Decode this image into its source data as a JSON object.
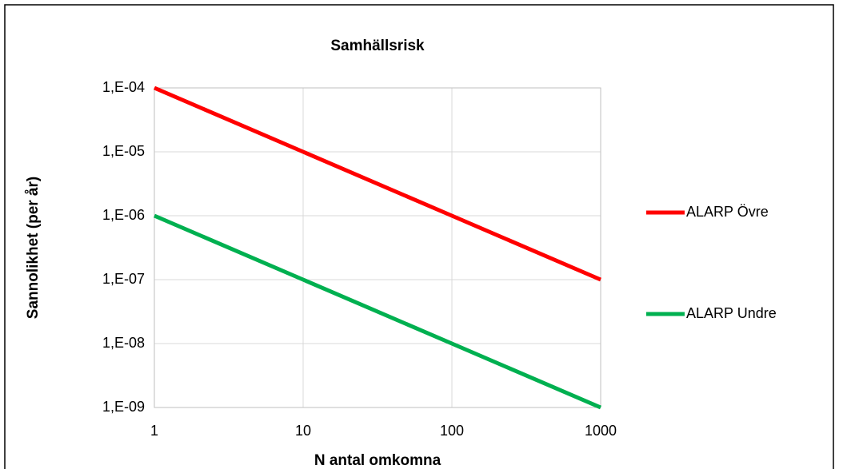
{
  "chart_data": {
    "type": "line",
    "title": "Samhällsrisk",
    "xlabel": "N antal omkomna",
    "ylabel": "Sannolikhet (per år)",
    "x": [
      1,
      10,
      100,
      1000
    ],
    "series": [
      {
        "name": "ALARP Övre",
        "color": "#ff0000",
        "values": [
          0.0001,
          1e-05,
          1e-06,
          1e-07
        ]
      },
      {
        "name": "ALARP Undre",
        "color": "#00b050",
        "values": [
          1e-06,
          1e-07,
          1e-08,
          1e-09
        ]
      }
    ],
    "xlim": [
      1,
      1000
    ],
    "xticks": [
      1,
      10,
      100,
      1000
    ],
    "ylim": [
      1e-09,
      0.0001
    ],
    "yticks": [
      {
        "value": 1e-09,
        "label": "1,E-09"
      },
      {
        "value": 1e-08,
        "label": "1,E-08"
      },
      {
        "value": 1e-07,
        "label": "1,E-07"
      },
      {
        "value": 1e-06,
        "label": "1,E-06"
      },
      {
        "value": 1e-05,
        "label": "1,E-05"
      },
      {
        "value": 0.0001,
        "label": "1,E-04"
      }
    ],
    "xscale": "log",
    "yscale": "log",
    "grid": true,
    "legend": "right"
  }
}
